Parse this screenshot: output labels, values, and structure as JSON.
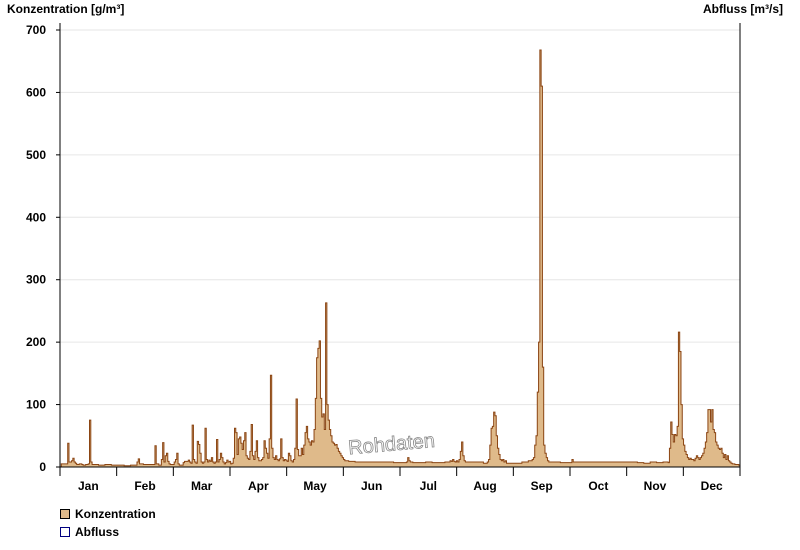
{
  "chart_data": {
    "type": "area",
    "y_axis_left_label": "Konzentration [g/m³]",
    "y_axis_right_label": "Abfluss [m³/s]",
    "ylim": [
      0,
      700
    ],
    "yticks": [
      0,
      100,
      200,
      300,
      400,
      500,
      600,
      700
    ],
    "months": [
      "Jan",
      "Feb",
      "Mar",
      "Apr",
      "May",
      "Jun",
      "Jul",
      "Aug",
      "Sep",
      "Oct",
      "Nov",
      "Dec"
    ],
    "grid": true,
    "watermark": "Rohdaten",
    "colors": {
      "konzentration_fill": "#dfba8a",
      "konzentration_line": "#8b4513",
      "abfluss": "#000080",
      "grid": "#e6e6e6"
    },
    "series": [
      {
        "name": "Konzentration",
        "x_unit": "day of year",
        "points": [
          [
            1,
            5
          ],
          [
            5,
            5
          ],
          [
            6,
            38
          ],
          [
            7,
            8
          ],
          [
            9,
            10
          ],
          [
            10,
            14
          ],
          [
            11,
            8
          ],
          [
            12,
            6
          ],
          [
            13,
            4
          ],
          [
            15,
            5
          ],
          [
            17,
            4
          ],
          [
            18,
            3
          ],
          [
            20,
            4
          ],
          [
            22,
            5
          ],
          [
            23,
            75
          ],
          [
            24,
            8
          ],
          [
            25,
            4
          ],
          [
            28,
            4
          ],
          [
            30,
            3
          ],
          [
            32,
            3
          ],
          [
            35,
            4
          ],
          [
            40,
            3
          ],
          [
            45,
            3
          ],
          [
            50,
            2
          ],
          [
            55,
            3
          ],
          [
            59,
            3
          ],
          [
            60,
            8
          ],
          [
            61,
            13
          ],
          [
            62,
            5
          ],
          [
            65,
            4
          ],
          [
            70,
            4
          ],
          [
            73,
            4
          ],
          [
            74,
            34
          ],
          [
            75,
            5
          ],
          [
            77,
            3
          ],
          [
            79,
            12
          ],
          [
            80,
            39
          ],
          [
            81,
            8
          ],
          [
            82,
            18
          ],
          [
            83,
            22
          ],
          [
            84,
            9
          ],
          [
            85,
            5
          ],
          [
            86,
            4
          ],
          [
            89,
            8
          ],
          [
            90,
            12
          ],
          [
            91,
            22
          ],
          [
            92,
            5
          ],
          [
            93,
            3
          ],
          [
            96,
            7
          ],
          [
            97,
            9
          ],
          [
            100,
            11
          ],
          [
            101,
            8
          ],
          [
            102,
            6
          ],
          [
            103,
            67
          ],
          [
            104,
            12
          ],
          [
            105,
            8
          ],
          [
            106,
            6
          ],
          [
            107,
            41
          ],
          [
            108,
            36
          ],
          [
            109,
            22
          ],
          [
            110,
            8
          ],
          [
            111,
            6
          ],
          [
            112,
            8
          ],
          [
            113,
            62
          ],
          [
            114,
            12
          ],
          [
            115,
            8
          ],
          [
            116,
            11
          ],
          [
            117,
            9
          ],
          [
            118,
            15
          ],
          [
            119,
            8
          ],
          [
            120,
            6
          ],
          [
            121,
            8
          ],
          [
            122,
            44
          ],
          [
            123,
            8
          ],
          [
            124,
            12
          ],
          [
            125,
            22
          ],
          [
            126,
            15
          ],
          [
            127,
            8
          ],
          [
            128,
            5
          ],
          [
            129,
            7
          ],
          [
            130,
            11
          ],
          [
            131,
            8
          ],
          [
            132,
            9
          ],
          [
            133,
            5
          ],
          [
            134,
            6
          ],
          [
            135,
            14
          ],
          [
            136,
            62
          ],
          [
            137,
            55
          ],
          [
            138,
            20
          ],
          [
            139,
            45
          ],
          [
            140,
            48
          ],
          [
            141,
            38
          ],
          [
            142,
            28
          ],
          [
            143,
            42
          ],
          [
            144,
            55
          ],
          [
            145,
            18
          ],
          [
            146,
            14
          ],
          [
            147,
            12
          ],
          [
            148,
            25
          ],
          [
            149,
            68
          ],
          [
            150,
            18
          ],
          [
            151,
            12
          ],
          [
            152,
            25
          ],
          [
            153,
            42
          ],
          [
            154,
            15
          ],
          [
            155,
            10
          ],
          [
            156,
            10
          ],
          [
            157,
            12
          ],
          [
            158,
            15
          ],
          [
            159,
            42
          ],
          [
            160,
            30
          ],
          [
            161,
            22
          ],
          [
            162,
            14
          ],
          [
            163,
            45
          ],
          [
            164,
            147
          ],
          [
            165,
            30
          ],
          [
            166,
            15
          ],
          [
            167,
            12
          ],
          [
            168,
            18
          ],
          [
            169,
            12
          ],
          [
            170,
            10
          ],
          [
            171,
            13
          ],
          [
            172,
            45
          ],
          [
            173,
            15
          ],
          [
            174,
            10
          ],
          [
            175,
            12
          ],
          [
            176,
            11
          ],
          [
            177,
            9
          ],
          [
            178,
            22
          ],
          [
            179,
            18
          ],
          [
            180,
            10
          ],
          [
            181,
            8
          ],
          [
            182,
            12
          ],
          [
            183,
            30
          ],
          [
            184,
            109
          ],
          [
            185,
            28
          ],
          [
            186,
            18
          ],
          [
            187,
            18
          ],
          [
            188,
            30
          ],
          [
            189,
            20
          ],
          [
            190,
            35
          ],
          [
            191,
            55
          ],
          [
            192,
            65
          ],
          [
            193,
            45
          ],
          [
            194,
            40
          ],
          [
            195,
            35
          ],
          [
            196,
            42
          ],
          [
            197,
            40
          ],
          [
            198,
            60
          ],
          [
            199,
            110
          ],
          [
            200,
            175
          ],
          [
            201,
            190
          ],
          [
            202,
            202
          ],
          [
            203,
            110
          ],
          [
            204,
            80
          ],
          [
            205,
            85
          ],
          [
            206,
            60
          ],
          [
            207,
            263
          ],
          [
            208,
            100
          ],
          [
            209,
            75
          ],
          [
            210,
            60
          ],
          [
            211,
            50
          ],
          [
            212,
            40
          ],
          [
            213,
            38
          ],
          [
            214,
            35
          ],
          [
            215,
            36
          ],
          [
            216,
            30
          ],
          [
            217,
            25
          ],
          [
            218,
            22
          ],
          [
            219,
            18
          ],
          [
            220,
            15
          ],
          [
            221,
            12
          ],
          [
            222,
            10
          ],
          [
            225,
            9
          ],
          [
            230,
            8
          ],
          [
            240,
            8
          ],
          [
            250,
            8
          ],
          [
            260,
            7
          ],
          [
            265,
            7
          ],
          [
            270,
            8
          ],
          [
            271,
            15
          ],
          [
            272,
            10
          ],
          [
            273,
            8
          ],
          [
            275,
            7
          ],
          [
            280,
            7
          ],
          [
            285,
            8
          ],
          [
            290,
            7
          ],
          [
            295,
            7
          ],
          [
            300,
            8
          ],
          [
            304,
            10
          ],
          [
            305,
            9
          ],
          [
            306,
            12
          ],
          [
            307,
            9
          ],
          [
            308,
            8
          ],
          [
            309,
            10
          ],
          [
            310,
            8
          ],
          [
            311,
            12
          ],
          [
            312,
            25
          ],
          [
            313,
            40
          ],
          [
            314,
            18
          ],
          [
            315,
            10
          ],
          [
            316,
            8
          ],
          [
            320,
            8
          ],
          [
            330,
            6
          ],
          [
            332,
            6
          ],
          [
            333,
            8
          ],
          [
            334,
            12
          ],
          [
            335,
            35
          ],
          [
            336,
            62
          ],
          [
            337,
            65
          ],
          [
            338,
            88
          ],
          [
            339,
            82
          ],
          [
            340,
            50
          ],
          [
            341,
            30
          ],
          [
            342,
            20
          ],
          [
            343,
            12
          ],
          [
            344,
            10
          ],
          [
            345,
            12
          ],
          [
            346,
            8
          ],
          [
            347,
            10
          ],
          [
            348,
            6
          ],
          [
            355,
            6
          ],
          [
            360,
            8
          ],
          [
            365,
            10
          ],
          [
            368,
            12
          ],
          [
            369,
            15
          ],
          [
            370,
            35
          ],
          [
            371,
            50
          ],
          [
            372,
            120
          ],
          [
            373,
            200
          ],
          [
            374,
            668
          ],
          [
            375,
            610
          ],
          [
            376,
            160
          ],
          [
            377,
            35
          ],
          [
            378,
            22
          ],
          [
            379,
            15
          ],
          [
            380,
            10
          ],
          [
            381,
            8
          ],
          [
            385,
            8
          ],
          [
            390,
            7
          ],
          [
            398,
            7
          ],
          [
            399,
            12
          ],
          [
            400,
            8
          ],
          [
            410,
            8
          ],
          [
            420,
            8
          ],
          [
            430,
            8
          ],
          [
            440,
            8
          ],
          [
            448,
            8
          ],
          [
            450,
            7
          ],
          [
            452,
            7
          ],
          [
            455,
            6
          ],
          [
            460,
            8
          ],
          [
            465,
            7
          ],
          [
            470,
            8
          ],
          [
            474,
            7
          ],
          [
            475,
            30
          ],
          [
            476,
            72
          ],
          [
            477,
            52
          ],
          [
            478,
            40
          ],
          [
            479,
            52
          ],
          [
            480,
            50
          ],
          [
            481,
            65
          ],
          [
            482,
            216
          ],
          [
            483,
            185
          ],
          [
            484,
            100
          ],
          [
            485,
            45
          ],
          [
            486,
            35
          ],
          [
            487,
            25
          ],
          [
            488,
            20
          ],
          [
            489,
            15
          ],
          [
            490,
            12
          ],
          [
            491,
            14
          ],
          [
            492,
            12
          ],
          [
            493,
            12
          ],
          [
            494,
            10
          ],
          [
            495,
            14
          ],
          [
            496,
            18
          ],
          [
            497,
            15
          ],
          [
            498,
            12
          ],
          [
            499,
            15
          ],
          [
            500,
            18
          ],
          [
            501,
            22
          ],
          [
            502,
            30
          ],
          [
            503,
            40
          ],
          [
            504,
            55
          ],
          [
            505,
            92
          ],
          [
            506,
            92
          ],
          [
            507,
            72
          ],
          [
            508,
            92
          ],
          [
            509,
            60
          ],
          [
            510,
            55
          ],
          [
            511,
            40
          ],
          [
            512,
            35
          ],
          [
            513,
            30
          ],
          [
            514,
            28
          ],
          [
            515,
            30
          ],
          [
            516,
            22
          ],
          [
            517,
            15
          ],
          [
            518,
            20
          ],
          [
            519,
            12
          ],
          [
            520,
            18
          ],
          [
            521,
            10
          ],
          [
            522,
            8
          ],
          [
            523,
            6
          ],
          [
            524,
            5
          ],
          [
            526,
            4
          ],
          [
            529,
            3
          ]
        ]
      },
      {
        "name": "Abfluss",
        "points": []
      }
    ]
  },
  "legend": {
    "items": [
      "Konzentration",
      "Abfluss"
    ]
  }
}
